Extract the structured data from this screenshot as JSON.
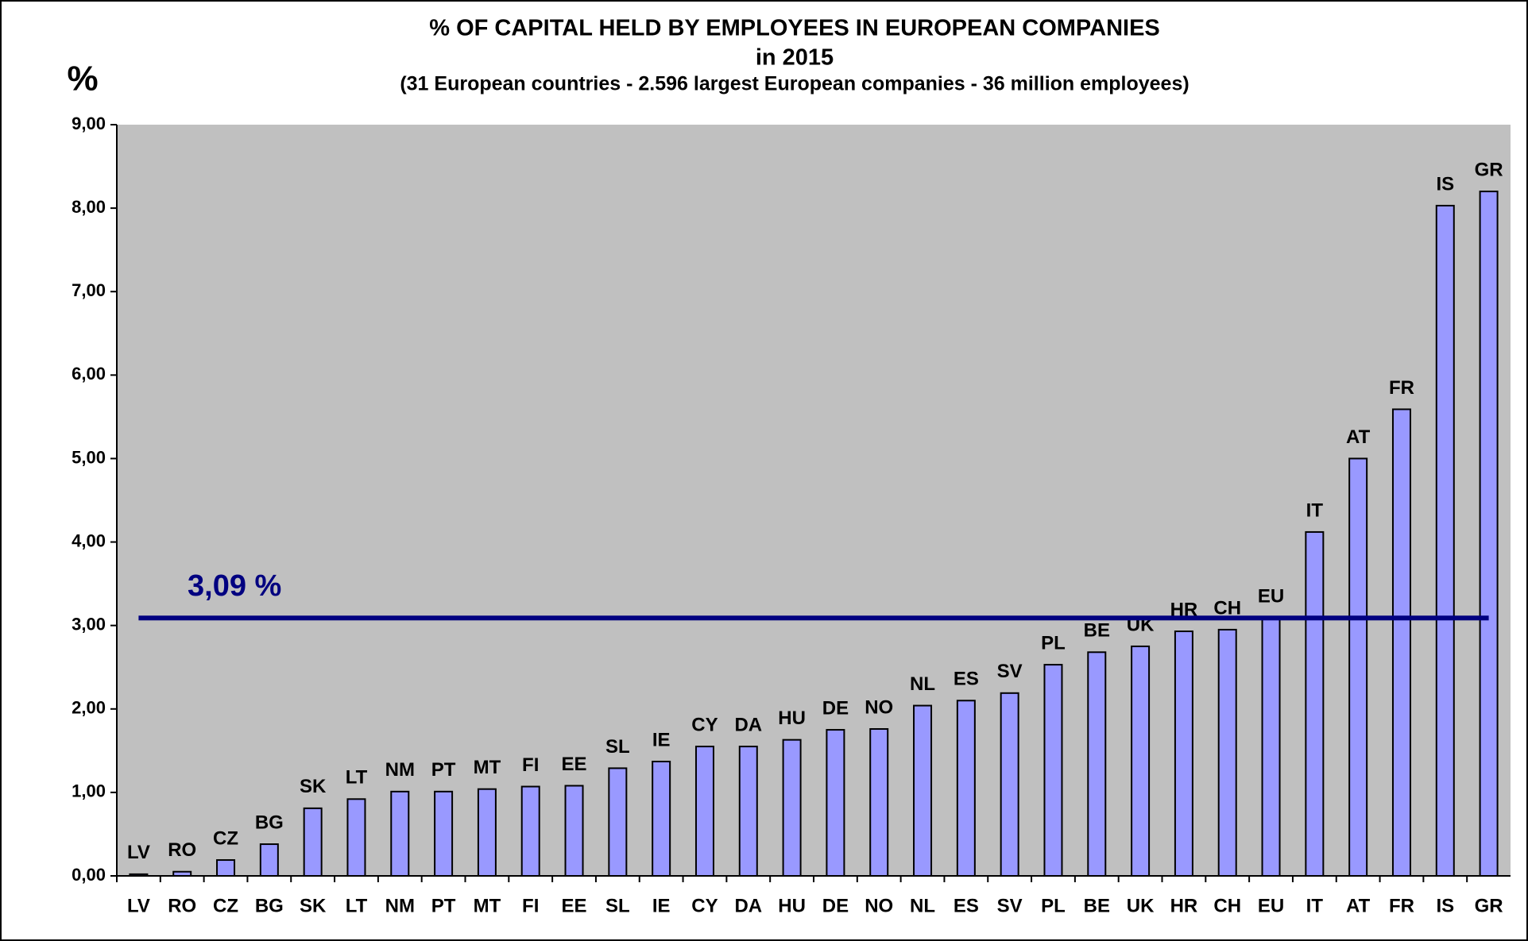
{
  "chart_data": {
    "type": "bar",
    "title": "% OF CAPITAL HELD BY EMPLOYEES IN EUROPEAN COMPANIES",
    "subtitle": "in 2015",
    "note": "(31 European countries - 2.596 largest European companies - 36 million employees)",
    "y_label": "%",
    "categories": [
      "LV",
      "RO",
      "CZ",
      "BG",
      "SK",
      "LT",
      "NM",
      "PT",
      "MT",
      "FI",
      "EE",
      "SL",
      "IE",
      "CY",
      "DA",
      "HU",
      "DE",
      "NO",
      "NL",
      "ES",
      "SV",
      "PL",
      "BE",
      "UK",
      "HR",
      "CH",
      "EU",
      "IT",
      "AT",
      "FR",
      "IS",
      "GR"
    ],
    "values": [
      0.02,
      0.05,
      0.19,
      0.38,
      0.81,
      0.92,
      1.01,
      1.01,
      1.04,
      1.07,
      1.08,
      1.29,
      1.37,
      1.55,
      1.55,
      1.63,
      1.75,
      1.76,
      2.04,
      2.1,
      2.19,
      2.53,
      2.68,
      2.75,
      2.93,
      2.95,
      3.09,
      4.12,
      5.0,
      5.59,
      8.03,
      8.2
    ],
    "color": "#9999ff",
    "reference_line": {
      "value": 3.09,
      "label": "3,09 %",
      "color": "#000080"
    },
    "ylim": [
      0,
      9
    ],
    "yticks": [
      {
        "value": 0,
        "label": "0,00"
      },
      {
        "value": 1,
        "label": "1,00"
      },
      {
        "value": 2,
        "label": "2,00"
      },
      {
        "value": 3,
        "label": "3,00"
      },
      {
        "value": 4,
        "label": "4,00"
      },
      {
        "value": 5,
        "label": "5,00"
      },
      {
        "value": 6,
        "label": "6,00"
      },
      {
        "value": 7,
        "label": "7,00"
      },
      {
        "value": 8,
        "label": "8,00"
      },
      {
        "value": 9,
        "label": "9,00"
      }
    ],
    "plot_background": "#c0c0c0"
  }
}
